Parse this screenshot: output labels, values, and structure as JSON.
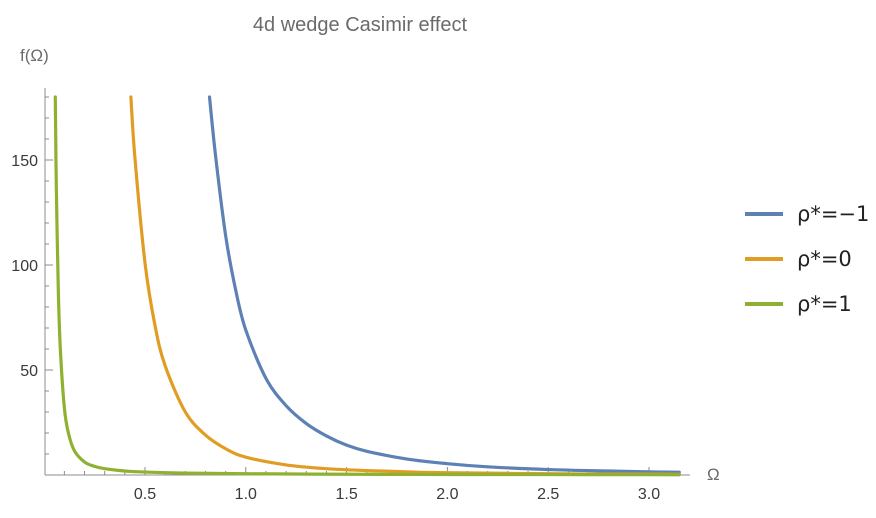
{
  "chart_data": {
    "type": "line",
    "title": "4d wedge Casimir effect",
    "xlabel": "Ω",
    "ylabel": "f(Ω)",
    "xlim": [
      -0.02,
      3.2
    ],
    "ylim": [
      0,
      182
    ],
    "x_ticks": [
      0.5,
      1.0,
      1.5,
      2.0,
      2.5,
      3.0
    ],
    "x_tick_labels": [
      "0.5",
      "1.0",
      "1.5",
      "2.0",
      "2.5",
      "3.0"
    ],
    "y_ticks": [
      50,
      100,
      150
    ],
    "y_tick_labels": [
      "50",
      "100",
      "150"
    ],
    "grid": false,
    "legend_position": "right",
    "series": [
      {
        "name": "ρ*=−1",
        "color": "#5e81b5",
        "x": [
          0.82,
          0.85,
          0.9,
          0.95,
          1.0,
          1.1,
          1.2,
          1.3,
          1.4,
          1.5,
          1.6,
          1.8,
          2.0,
          2.2,
          2.5,
          2.8,
          3.0,
          3.15
        ],
        "y": [
          180,
          152,
          114,
          88,
          69,
          46,
          33,
          24.5,
          18.6,
          14.2,
          11.3,
          7.6,
          5.4,
          3.9,
          2.6,
          1.9,
          1.5,
          1.3
        ]
      },
      {
        "name": "ρ*=0",
        "color": "#e19c24",
        "x": [
          0.43,
          0.45,
          0.5,
          0.55,
          0.6,
          0.7,
          0.8,
          0.9,
          1.0,
          1.2,
          1.4,
          1.6,
          1.8,
          2.0,
          2.5,
          3.0,
          3.15
        ],
        "y": [
          180,
          151,
          101,
          71,
          52,
          30,
          19,
          12.5,
          8.5,
          4.8,
          3.0,
          2.1,
          1.5,
          1.1,
          0.6,
          0.4,
          0.35
        ]
      },
      {
        "name": "ρ*=1",
        "color": "#8fb131",
        "x": [
          0.055,
          0.06,
          0.07,
          0.08,
          0.1,
          0.12,
          0.15,
          0.2,
          0.25,
          0.3,
          0.4,
          0.5,
          0.7,
          1.0,
          1.5,
          2.0,
          2.5,
          3.0,
          3.15
        ],
        "y": [
          180,
          138,
          88,
          60,
          32,
          20,
          11.5,
          6.2,
          4.1,
          3.0,
          1.9,
          1.4,
          0.9,
          0.6,
          0.35,
          0.25,
          0.2,
          0.15,
          0.12
        ]
      }
    ]
  }
}
